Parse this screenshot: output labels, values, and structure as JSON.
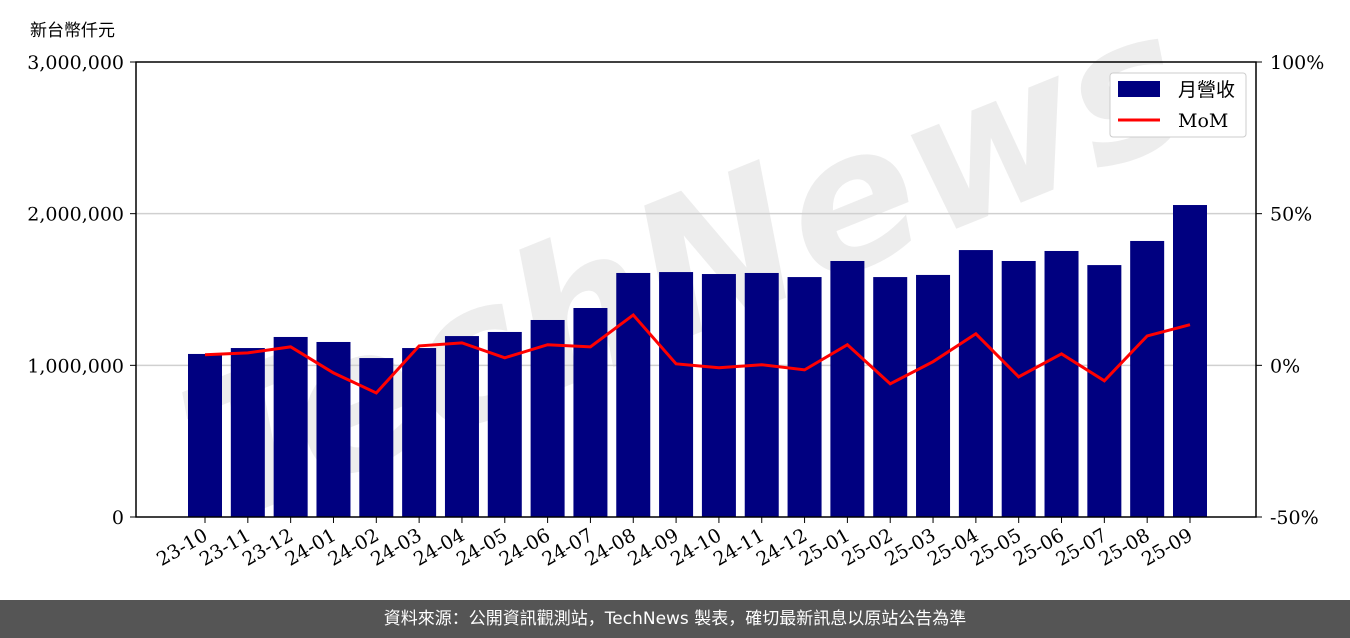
{
  "chart_data": {
    "type": "bar",
    "ylabel": "新台幣仟元",
    "ylim": [
      0,
      3000000
    ],
    "y2lim": [
      -50,
      100
    ],
    "yticks": [
      "0",
      "1,000,000",
      "2,000,000",
      "3,000,000"
    ],
    "y2ticks": [
      "-50%",
      "0%",
      "50%",
      "100%"
    ],
    "grid": true,
    "legend_placement": "top-right",
    "categories": [
      "23-10",
      "23-11",
      "23-12",
      "24-01",
      "24-02",
      "24-03",
      "24-04",
      "24-05",
      "24-06",
      "24-07",
      "24-08",
      "24-09",
      "24-10",
      "24-11",
      "24-12",
      "25-01",
      "25-02",
      "25-03",
      "25-04",
      "25-05",
      "25-06",
      "25-07",
      "25-08",
      "25-09"
    ],
    "series": [
      {
        "name": "月營收",
        "type": "bar",
        "axis": "left",
        "color": "#000080",
        "values": [
          1075000,
          1114000,
          1187000,
          1154000,
          1048000,
          1114000,
          1193000,
          1220000,
          1299000,
          1378000,
          1609000,
          1615000,
          1602000,
          1609000,
          1582000,
          1688000,
          1582000,
          1596000,
          1760000,
          1688000,
          1754000,
          1661000,
          1820000,
          2057000
        ]
      },
      {
        "name": "MoM",
        "type": "line",
        "axis": "right",
        "unit": "%",
        "color": "#ff0000",
        "values": [
          3.5,
          4.1,
          6.1,
          -2.5,
          -9.1,
          6.4,
          7.4,
          2.5,
          6.8,
          6.1,
          16.6,
          0.5,
          -0.8,
          0.2,
          -1.5,
          6.8,
          -6.1,
          1.2,
          10.4,
          -3.8,
          3.8,
          -5.1,
          9.7,
          13.4
        ]
      }
    ]
  },
  "watermark": "TechNews",
  "footer": "資料來源：公開資訊觀測站，TechNews 製表，確切最新訊息以原站公告為準"
}
